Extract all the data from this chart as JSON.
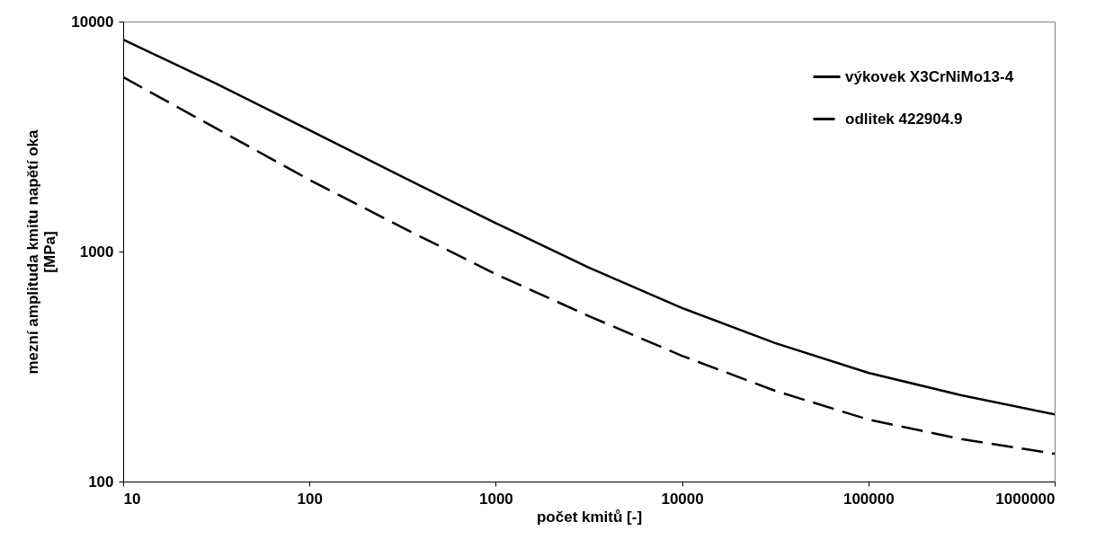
{
  "chart_data": {
    "type": "line",
    "xlabel": "počet kmitů [-]",
    "ylabel": "mezní amplituda kmitu napětí oka [MPa]",
    "log": "xy",
    "xlim": [
      10,
      1000000
    ],
    "ylim": [
      100,
      10000
    ],
    "xticks": [
      10,
      100,
      1000,
      10000,
      100000,
      1000000
    ],
    "yticks": [
      100,
      1000,
      10000
    ],
    "grid": false,
    "legend": "top right",
    "x": [
      10,
      31.6,
      100,
      316,
      1000,
      3160,
      10000,
      31600,
      100000,
      316000,
      1000000
    ],
    "series": [
      {
        "name": "výkovek X3CrNiMo13-4",
        "color": "#000000",
        "line_style": "solid",
        "values": [
          8350,
          5370,
          3370,
          2110,
          1330,
          851,
          568,
          400,
          297,
          237,
          196
        ]
      },
      {
        "name": "odlitek  422904.9",
        "color": "#000000",
        "line_style": "dashed",
        "values": [
          5730,
          3430,
          2050,
          1270,
          798,
          524,
          352,
          248,
          186,
          153,
          132
        ]
      }
    ]
  }
}
